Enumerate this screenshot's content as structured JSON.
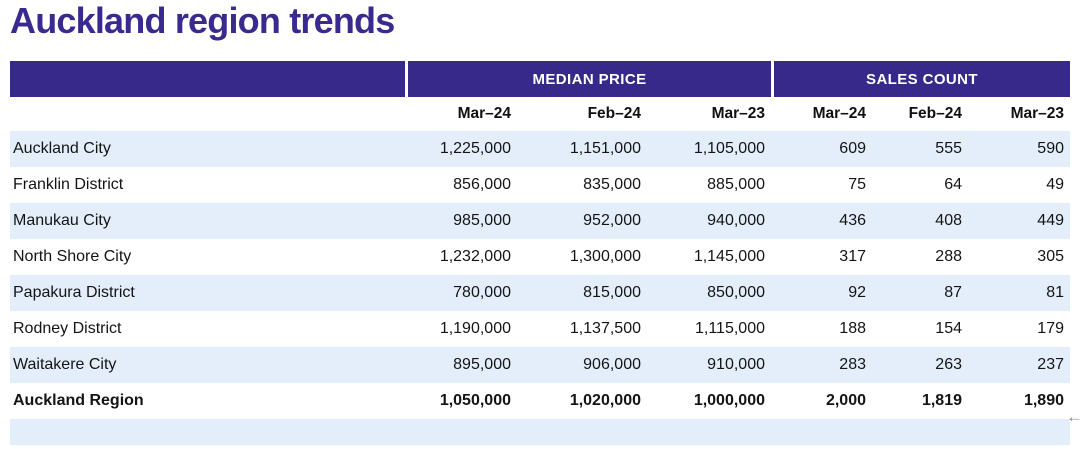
{
  "page": {
    "title": "Auckland region trends"
  },
  "colors": {
    "accent_purple": "#37298a",
    "title_purple": "#3a2a8f",
    "row_stripe_blue": "#e4eefb",
    "header_text": "#ffffff",
    "body_text": "#141414"
  },
  "icons": {
    "corner_arrow": "←"
  },
  "chart_data": {
    "type": "table",
    "title": "Auckland region trends",
    "column_groups": [
      {
        "label": "MEDIAN PRICE",
        "span": 3
      },
      {
        "label": "SALES COUNT",
        "span": 3
      }
    ],
    "columns": [
      "Mar–24",
      "Feb–24",
      "Mar–23",
      "Mar–24",
      "Feb–24",
      "Mar–23"
    ],
    "rows": [
      {
        "region": "Auckland City",
        "bold": false,
        "values": [
          "1,225,000",
          "1,151,000",
          "1,105,000",
          "609",
          "555",
          "590"
        ]
      },
      {
        "region": "Franklin District",
        "bold": false,
        "values": [
          "856,000",
          "835,000",
          "885,000",
          "75",
          "64",
          "49"
        ]
      },
      {
        "region": "Manukau City",
        "bold": false,
        "values": [
          "985,000",
          "952,000",
          "940,000",
          "436",
          "408",
          "449"
        ]
      },
      {
        "region": "North Shore City",
        "bold": false,
        "values": [
          "1,232,000",
          "1,300,000",
          "1,145,000",
          "317",
          "288",
          "305"
        ]
      },
      {
        "region": "Papakura District",
        "bold": false,
        "values": [
          "780,000",
          "815,000",
          "850,000",
          "92",
          "87",
          "81"
        ]
      },
      {
        "region": "Rodney District",
        "bold": false,
        "values": [
          "1,190,000",
          "1,137,500",
          "1,115,000",
          "188",
          "154",
          "179"
        ]
      },
      {
        "region": "Waitakere City",
        "bold": false,
        "values": [
          "895,000",
          "906,000",
          "910,000",
          "283",
          "263",
          "237"
        ]
      },
      {
        "region": "Auckland Region",
        "bold": true,
        "values": [
          "1,050,000",
          "1,020,000",
          "1,000,000",
          "2,000",
          "1,819",
          "1,890"
        ]
      }
    ],
    "numeric_rows": [
      {
        "region": "Auckland City",
        "median_price": [
          1225000,
          1151000,
          1105000
        ],
        "sales_count": [
          609,
          555,
          590
        ]
      },
      {
        "region": "Franklin District",
        "median_price": [
          856000,
          835000,
          885000
        ],
        "sales_count": [
          75,
          64,
          49
        ]
      },
      {
        "region": "Manukau City",
        "median_price": [
          985000,
          952000,
          940000
        ],
        "sales_count": [
          436,
          408,
          449
        ]
      },
      {
        "region": "North Shore City",
        "median_price": [
          1232000,
          1300000,
          1145000
        ],
        "sales_count": [
          317,
          288,
          305
        ]
      },
      {
        "region": "Papakura District",
        "median_price": [
          780000,
          815000,
          850000
        ],
        "sales_count": [
          92,
          87,
          81
        ]
      },
      {
        "region": "Rodney District",
        "median_price": [
          1190000,
          1137500,
          1115000
        ],
        "sales_count": [
          188,
          154,
          179
        ]
      },
      {
        "region": "Waitakere City",
        "median_price": [
          895000,
          906000,
          910000
        ],
        "sales_count": [
          283,
          263,
          237
        ]
      },
      {
        "region": "Auckland Region",
        "median_price": [
          1050000,
          1020000,
          1000000
        ],
        "sales_count": [
          2000,
          1819,
          1890
        ]
      }
    ]
  }
}
